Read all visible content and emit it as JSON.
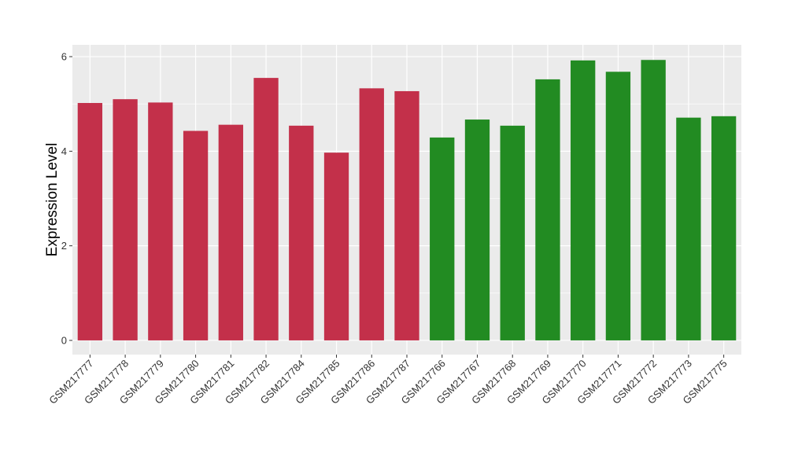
{
  "chart_data": {
    "type": "bar",
    "title": "",
    "xlabel": "",
    "ylabel": "Expression Level",
    "ylim": [
      -0.3,
      6.25
    ],
    "yticks": [
      0,
      2,
      4,
      6
    ],
    "ytick_labels": [
      "0",
      "2",
      "4",
      "6"
    ],
    "grid": true,
    "legend": "none",
    "colors": {
      "panel": "#ebebeb",
      "grid": "#ffffff",
      "group1": "#c3304a",
      "group2": "#228b22"
    },
    "categories": [
      "GSM217777",
      "GSM217778",
      "GSM217779",
      "GSM217780",
      "GSM217781",
      "GSM217782",
      "GSM217784",
      "GSM217785",
      "GSM217786",
      "GSM217787",
      "GSM217766",
      "GSM217767",
      "GSM217768",
      "GSM217769",
      "GSM217770",
      "GSM217771",
      "GSM217772",
      "GSM217773",
      "GSM217775"
    ],
    "values": [
      5.02,
      5.1,
      5.03,
      4.43,
      4.56,
      5.55,
      4.54,
      3.97,
      5.33,
      5.27,
      4.29,
      4.67,
      4.54,
      5.52,
      5.92,
      5.68,
      5.93,
      4.71,
      4.74
    ],
    "bar_colors": [
      "#c3304a",
      "#c3304a",
      "#c3304a",
      "#c3304a",
      "#c3304a",
      "#c3304a",
      "#c3304a",
      "#c3304a",
      "#c3304a",
      "#c3304a",
      "#228b22",
      "#228b22",
      "#228b22",
      "#228b22",
      "#228b22",
      "#228b22",
      "#228b22",
      "#228b22",
      "#228b22"
    ]
  }
}
